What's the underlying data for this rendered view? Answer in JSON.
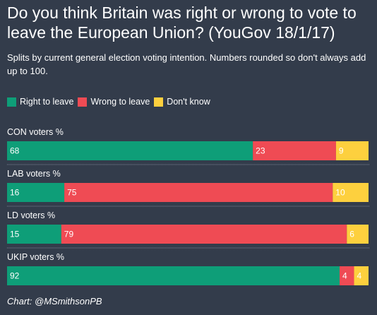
{
  "colors": {
    "background": "#333c4b",
    "right_to_leave": "#0e9e78",
    "wrong_to_leave": "#ef4b54",
    "dont_know": "#fdd03e",
    "divider": "#7c8594"
  },
  "chart_data": {
    "type": "bar",
    "orientation": "horizontal",
    "stacked": true,
    "title": "Do you think Britain was right or wrong to vote to leave the European Union? (YouGov 18/1/17)",
    "subtitle": "Splits by current general election voting intention. Numbers rounded so don't always add up to 100.",
    "categories": [
      "CON voters %",
      "LAB voters %",
      "LD voters %",
      "UKIP voters %"
    ],
    "series": [
      {
        "name": "Right to leave",
        "color": "#0e9e78",
        "values": [
          68,
          16,
          15,
          92
        ]
      },
      {
        "name": "Wrong to leave",
        "color": "#ef4b54",
        "values": [
          23,
          75,
          79,
          4
        ]
      },
      {
        "name": "Don't know",
        "color": "#fdd03e",
        "values": [
          9,
          10,
          6,
          4
        ]
      }
    ],
    "legend_position": "top-left",
    "data_labels": true,
    "grid": false
  },
  "footer": {
    "credit": "Chart: @MSmithsonPB"
  }
}
